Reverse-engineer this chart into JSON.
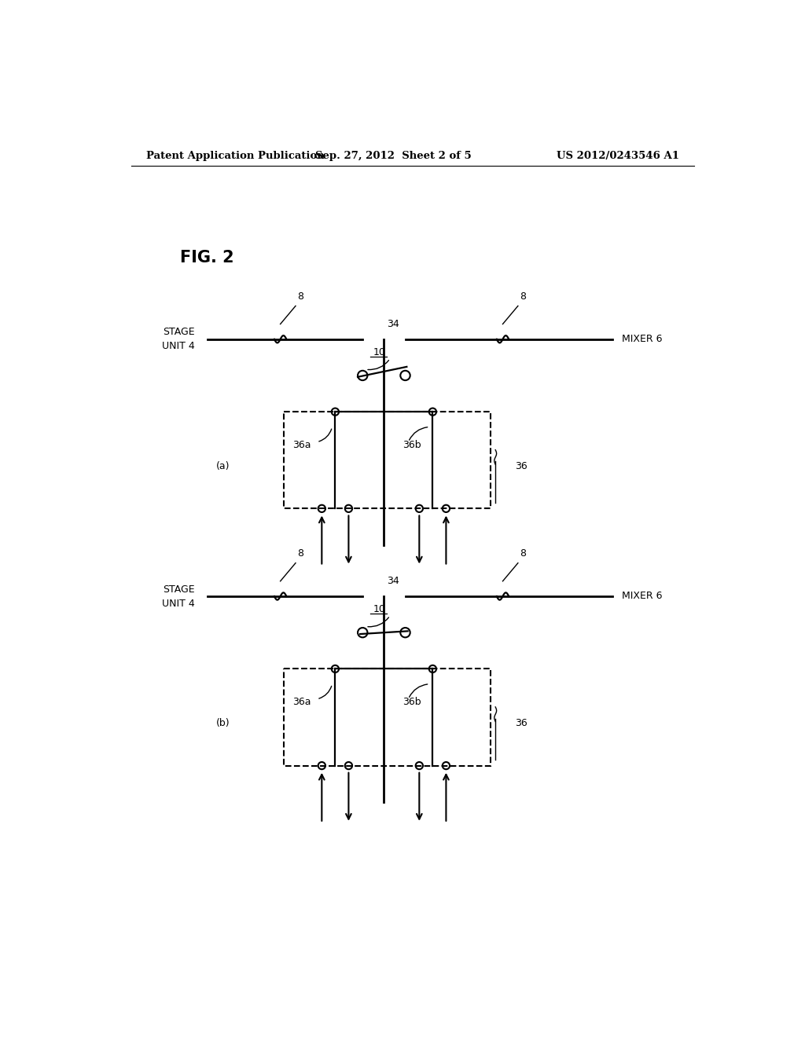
{
  "bg_color": "#ffffff",
  "text_color": "#000000",
  "header_left": "Patent Application Publication",
  "header_mid": "Sep. 27, 2012  Sheet 2 of 5",
  "header_right": "US 2012/0243546 A1",
  "fig_label": "FIG. 2",
  "diagram_a_label": "(a)",
  "diagram_b_label": "(b)",
  "stage_unit_label": "STAGE\nUNIT 4",
  "mixer_label": "MIXER 6",
  "label_8": "8",
  "label_34": "34",
  "label_10": "10",
  "label_36a": "36a",
  "label_36b": "36b",
  "label_36": "36",
  "lw": 1.6,
  "lw_thick": 2.0
}
